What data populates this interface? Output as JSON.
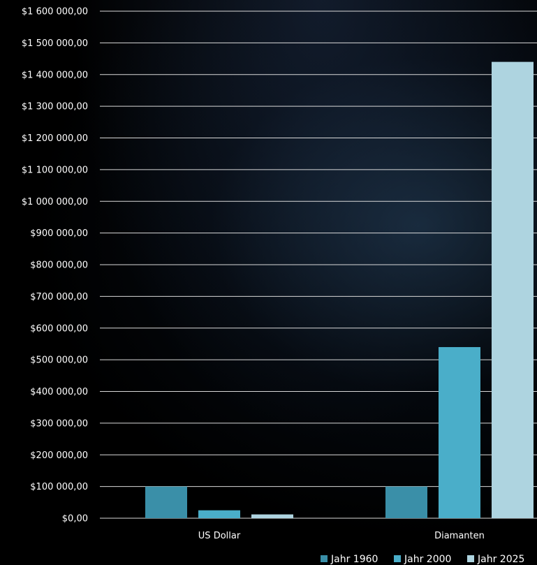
{
  "chart_data": {
    "type": "bar",
    "categories": [
      "US Dollar",
      "Diamanten"
    ],
    "series": [
      {
        "name": "Jahr 1960",
        "color": "#3a8fa8",
        "values": [
          100000,
          100000
        ]
      },
      {
        "name": "Jahr 2000",
        "color": "#4aaec9",
        "values": [
          25000,
          540000
        ]
      },
      {
        "name": "Jahr 2025",
        "color": "#aed4e0",
        "values": [
          12000,
          1440000
        ]
      }
    ],
    "ylim": [
      0,
      1600000
    ],
    "ytick_step": 100000,
    "ytick_labels": [
      "$0,00",
      "$100 000,00",
      "$200 000,00",
      "$300 000,00",
      "$400 000,00",
      "$500 000,00",
      "$600 000,00",
      "$700 000,00",
      "$800 000,00",
      "$900 000,00",
      "$1 000 000,00",
      "$1 100 000,00",
      "$1 200 000,00",
      "$1 300 000,00",
      "$1 400 000,00",
      "$1 500 000,00",
      "$1 600 000,00"
    ],
    "grid": true,
    "legend_position": "bottom-right"
  }
}
